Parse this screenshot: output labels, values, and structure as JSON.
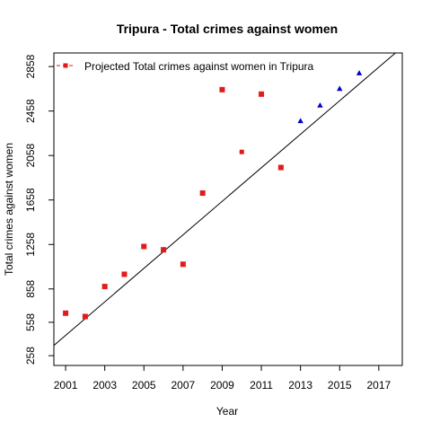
{
  "chart_data": {
    "type": "scatter",
    "title": "Tripura  -  Total crimes against women",
    "xlabel": "Year",
    "ylabel": "Total crimes against women",
    "xlim": [
      2000.4,
      2018.2
    ],
    "ylim": [
      170,
      2980
    ],
    "x_ticks": [
      2001,
      2003,
      2005,
      2007,
      2009,
      2011,
      2013,
      2015,
      2017
    ],
    "y_ticks": [
      258,
      558,
      858,
      1258,
      1658,
      2058,
      2458,
      2858
    ],
    "legend": {
      "position": "top-left",
      "entries": [
        {
          "label": "Projected  Total crimes against women  in  Tripura",
          "color": "#e31a1c",
          "marker": "square",
          "line": "dashed"
        }
      ]
    },
    "series": [
      {
        "kind": "actual",
        "marker": "square",
        "color": "#e31a1c",
        "points": [
          {
            "x": 2001,
            "y": 640
          },
          {
            "x": 2002,
            "y": 610
          },
          {
            "x": 2003,
            "y": 880
          },
          {
            "x": 2004,
            "y": 990
          },
          {
            "x": 2005,
            "y": 1240
          },
          {
            "x": 2006,
            "y": 1210
          },
          {
            "x": 2007,
            "y": 1080
          },
          {
            "x": 2008,
            "y": 1720
          },
          {
            "x": 2009,
            "y": 2650
          },
          {
            "x": 2011,
            "y": 2610
          },
          {
            "x": 2012,
            "y": 1950
          }
        ]
      },
      {
        "kind": "fitted",
        "marker": "square",
        "color": "#e31a1c",
        "points": [
          {
            "x": 2010,
            "y": 2090
          }
        ]
      },
      {
        "kind": "projected",
        "marker": "triangle",
        "color": "#0000cd",
        "points": [
          {
            "x": 2013,
            "y": 2370
          },
          {
            "x": 2014,
            "y": 2510
          },
          {
            "x": 2015,
            "y": 2660
          },
          {
            "x": 2016,
            "y": 2800
          }
        ]
      }
    ],
    "trend_line": {
      "color": "#000000",
      "points": [
        {
          "x": 2000.4,
          "y": 350
        },
        {
          "x": 2017.85,
          "y": 2980
        }
      ]
    }
  }
}
